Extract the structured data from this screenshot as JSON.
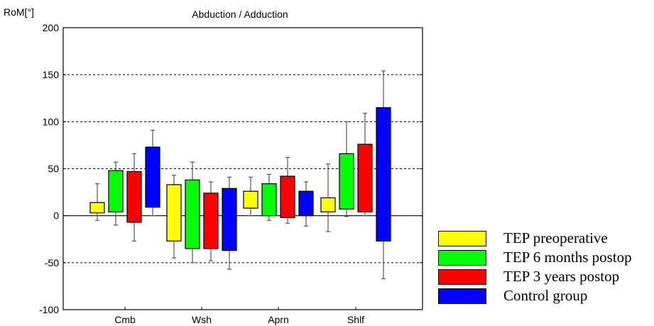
{
  "chart_data": {
    "type": "bar",
    "title": "Abduction / Adduction",
    "ylabel": "RoM[°]",
    "xlabel": "",
    "ylim": [
      -100,
      200
    ],
    "yticks": [
      -100,
      -50,
      0,
      50,
      100,
      150,
      200
    ],
    "grid": "dashed-horizontal",
    "legend_position": "right-bottom",
    "categories": [
      "Cmb",
      "Wsh",
      "Aprn",
      "Shlf"
    ],
    "series": [
      {
        "name": "TEP preoperative",
        "color": "#ffff00",
        "low": [
          3,
          -27,
          8,
          4
        ],
        "high": [
          14,
          33,
          26,
          19
        ],
        "whisker_low": [
          -5,
          -45,
          0,
          -17
        ],
        "whisker_high": [
          34,
          43,
          41,
          55
        ]
      },
      {
        "name": "TEP 6 months postop",
        "color": "#00ff00",
        "low": [
          4,
          -35,
          0,
          7
        ],
        "high": [
          48,
          38,
          34,
          66
        ],
        "whisker_low": [
          -10,
          -50,
          -5,
          -1
        ],
        "whisker_high": [
          57,
          57,
          44,
          100
        ]
      },
      {
        "name": "TEP 3 years postop",
        "color": "#ff0000",
        "low": [
          -7,
          -35,
          -2,
          4
        ],
        "high": [
          47,
          24,
          42,
          76
        ],
        "whisker_low": [
          -27,
          -48,
          -8,
          0
        ],
        "whisker_high": [
          66,
          36,
          62,
          109
        ]
      },
      {
        "name": "Control group",
        "color": "#0000ff",
        "low": [
          9,
          -37,
          0,
          -27
        ],
        "high": [
          73,
          29,
          26,
          115
        ],
        "whisker_low": [
          0,
          -57,
          -11,
          -67
        ],
        "whisker_high": [
          91,
          41,
          36,
          154
        ]
      }
    ]
  }
}
